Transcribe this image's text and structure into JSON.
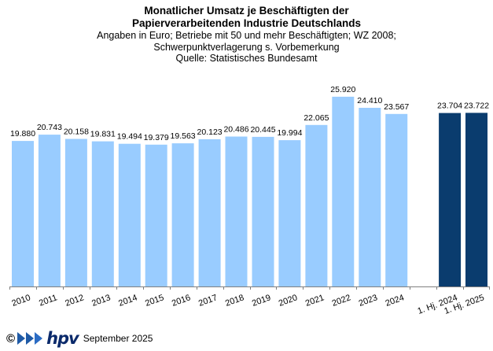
{
  "title_lines": [
    "Monatlicher Umsatz je Beschäftigten der",
    "Papierverarbeitenden Industrie Deutschlands"
  ],
  "subtitle_lines": [
    "Angaben  in Euro; Betriebe mit 50 und mehr Beschäftigten; WZ 2008;",
    "Schwerpunktverlagerung s. Vorbemerkung",
    "Quelle: Statistisches Bundesamt"
  ],
  "footer": {
    "copyright": "©",
    "logo": "hpv",
    "date": "September 2025"
  },
  "colors": {
    "annual": "#99ccff",
    "halfyear": "#0a3c6e",
    "axis": "#7f7f7f"
  },
  "chart_data": {
    "type": "bar",
    "title": "Monatlicher Umsatz je Beschäftigten der Papierverarbeitenden Industrie Deutschlands",
    "ylim": [
      0,
      30000
    ],
    "grid": false,
    "categories": [
      "2010",
      "2011",
      "2012",
      "2013",
      "2014",
      "2015",
      "2016",
      "2017",
      "2018",
      "2019",
      "2020",
      "2021",
      "2022",
      "2023",
      "2024",
      "",
      "1. Hj. 2024",
      "1. Hj. 2025"
    ],
    "values": [
      19880,
      20743,
      20158,
      19831,
      19494,
      19379,
      19563,
      20123,
      20486,
      20445,
      19994,
      22065,
      25920,
      24410,
      23567,
      null,
      23704,
      23722
    ],
    "labels": [
      "19.880",
      "20.743",
      "20.158",
      "19.831",
      "19.494",
      "19.379",
      "19.563",
      "20.123",
      "20.486",
      "20.445",
      "19.994",
      "22.065",
      "25.920",
      "24.410",
      "23.567",
      "",
      "23.704",
      "23.722"
    ],
    "series_type": [
      "annual",
      "annual",
      "annual",
      "annual",
      "annual",
      "annual",
      "annual",
      "annual",
      "annual",
      "annual",
      "annual",
      "annual",
      "annual",
      "annual",
      "annual",
      "gap",
      "halfyear",
      "halfyear"
    ]
  }
}
